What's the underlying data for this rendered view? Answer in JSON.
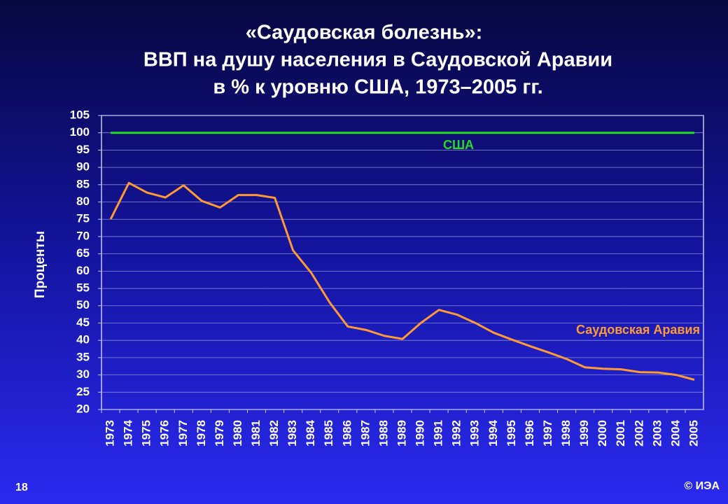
{
  "chart_data": {
    "type": "line",
    "title": [
      "«Саудовская болезнь»:",
      "ВВП на душу населения в Саудовской Аравии",
      "в % к уровню США, 1973–2005 гг."
    ],
    "y_label": "Проценты",
    "categories": [
      "1973",
      "1974",
      "1975",
      "1976",
      "1977",
      "1978",
      "1979",
      "1980",
      "1981",
      "1982",
      "1983",
      "1984",
      "1985",
      "1986",
      "1987",
      "1988",
      "1989",
      "1990",
      "1991",
      "1992",
      "1993",
      "1994",
      "1995",
      "1996",
      "1997",
      "1998",
      "1999",
      "2000",
      "2001",
      "2002",
      "2003",
      "2004",
      "2005"
    ],
    "series": [
      {
        "name": "США",
        "color": "#22dd22",
        "values": [
          100,
          100,
          100,
          100,
          100,
          100,
          100,
          100,
          100,
          100,
          100,
          100,
          100,
          100,
          100,
          100,
          100,
          100,
          100,
          100,
          100,
          100,
          100,
          100,
          100,
          100,
          100,
          100,
          100,
          100,
          100,
          100,
          100
        ]
      },
      {
        "name": "Саудовская Аравия",
        "color": "#ff9933",
        "values": [
          75,
          85.5,
          82.7,
          81.3,
          84.8,
          80.3,
          78.4,
          82,
          82,
          81.2,
          66,
          59.5,
          51,
          44,
          43,
          41.3,
          40.4,
          45,
          48.8,
          47.4,
          45,
          42.2,
          40.2,
          38.3,
          36.5,
          34.6,
          32.2,
          31.8,
          31.6,
          30.8,
          30.7,
          30,
          28.6
        ]
      }
    ],
    "ylim": [
      20,
      105
    ],
    "yticks": [
      20,
      25,
      30,
      35,
      40,
      45,
      50,
      55,
      60,
      65,
      70,
      75,
      80,
      85,
      90,
      95,
      100,
      105
    ],
    "grid": true
  },
  "page_number": "18",
  "credit": "© ИЭА"
}
